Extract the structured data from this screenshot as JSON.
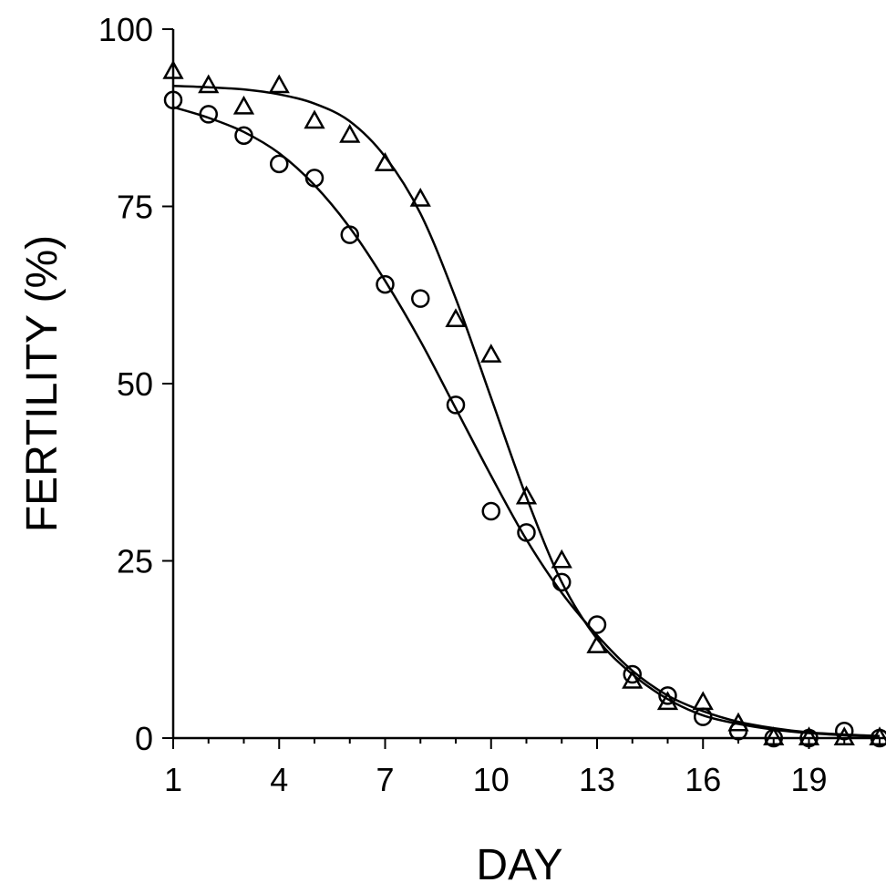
{
  "chart_data": {
    "type": "scatter",
    "title": "",
    "xlabel": "DAY",
    "ylabel": "FERTILITY (%)",
    "xlim": [
      1,
      21
    ],
    "ylim": [
      0,
      100
    ],
    "x_ticks": [
      1,
      4,
      7,
      10,
      13,
      16,
      19
    ],
    "x_tick_labels": [
      "1",
      "4",
      "7",
      "10",
      "13",
      "16",
      "19"
    ],
    "y_ticks": [
      0,
      25,
      50,
      75,
      100
    ],
    "y_tick_labels": [
      "0",
      "25",
      "50",
      "75",
      "100"
    ],
    "grid": false,
    "legend": "none",
    "series": [
      {
        "marker": "triangle",
        "fitted_curve": true,
        "x": [
          1,
          2,
          3,
          4,
          5,
          6,
          7,
          8,
          9,
          10,
          11,
          12,
          13,
          14,
          15,
          16,
          17,
          18,
          19,
          20,
          21
        ],
        "y": [
          94,
          92,
          89,
          92,
          87,
          85,
          81,
          76,
          59,
          54,
          34,
          25,
          13,
          8,
          5,
          5,
          2,
          0,
          0,
          0,
          0
        ],
        "fit_y": [
          92,
          91.8,
          91.5,
          90.8,
          89.5,
          87,
          82,
          74,
          62,
          48,
          34,
          22,
          14,
          9,
          5.5,
          3.2,
          2,
          1.2,
          0.7,
          0.4,
          0.2
        ]
      },
      {
        "marker": "circle",
        "fitted_curve": true,
        "x": [
          1,
          2,
          3,
          4,
          5,
          6,
          7,
          8,
          9,
          10,
          11,
          12,
          13,
          14,
          15,
          16,
          17,
          18,
          19,
          20,
          21
        ],
        "y": [
          90,
          88,
          85,
          81,
          79,
          71,
          64,
          62,
          47,
          32,
          29,
          22,
          16,
          9,
          6,
          3,
          1,
          0,
          0,
          1,
          0
        ],
        "fit_y": [
          89,
          87.5,
          85.5,
          82.5,
          78,
          72,
          64.5,
          56,
          46.5,
          37,
          28,
          20.5,
          14.5,
          9.5,
          6,
          3.8,
          2.3,
          1.4,
          0.8,
          0.5,
          0.3
        ]
      }
    ]
  }
}
